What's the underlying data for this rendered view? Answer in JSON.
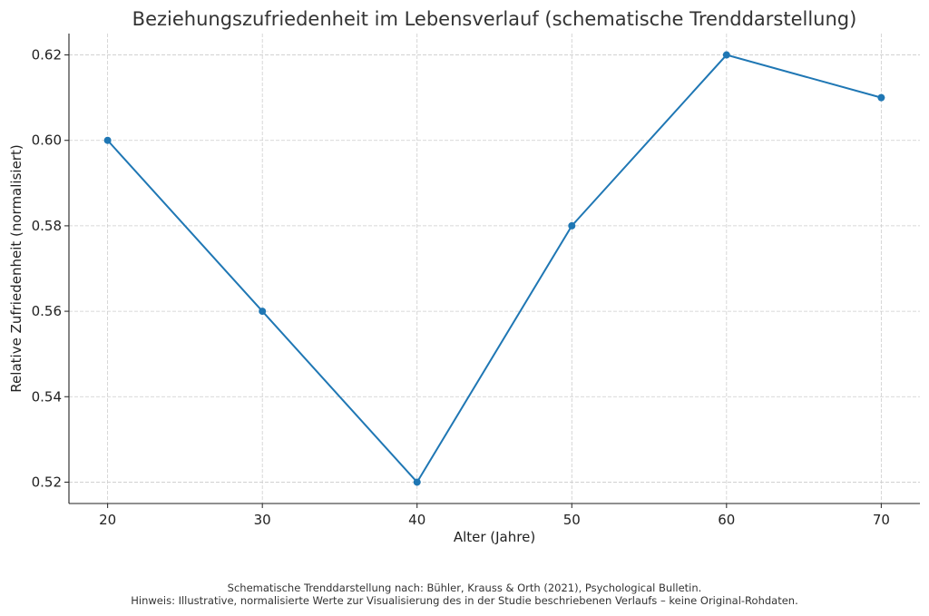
{
  "chart_data": {
    "type": "line",
    "title": "Beziehungszufriedenheit im Lebensverlauf (schematische Trenddarstellung)",
    "xlabel": "Alter (Jahre)",
    "ylabel": "Relative Zufriedenheit (normalisiert)",
    "x": [
      20,
      30,
      40,
      50,
      60,
      70
    ],
    "values": [
      0.6,
      0.56,
      0.52,
      0.58,
      0.62,
      0.61
    ],
    "xticks": [
      "20",
      "30",
      "40",
      "50",
      "60",
      "70"
    ],
    "yticks": [
      "0.52",
      "0.54",
      "0.56",
      "0.58",
      "0.60",
      "0.62"
    ],
    "xlim": [
      17.5,
      72.5
    ],
    "ylim": [
      0.515,
      0.625
    ],
    "grid": true,
    "line_color": "#1f77b4"
  },
  "footnotes": {
    "line1": "Schematische Trenddarstellung nach: Bühler, Krauss & Orth (2021), Psychological Bulletin.",
    "line2": "Hinweis: Illustrative, normalisierte Werte zur Visualisierung des in der Studie beschriebenen Verlaufs – keine Original-Rohdaten."
  }
}
